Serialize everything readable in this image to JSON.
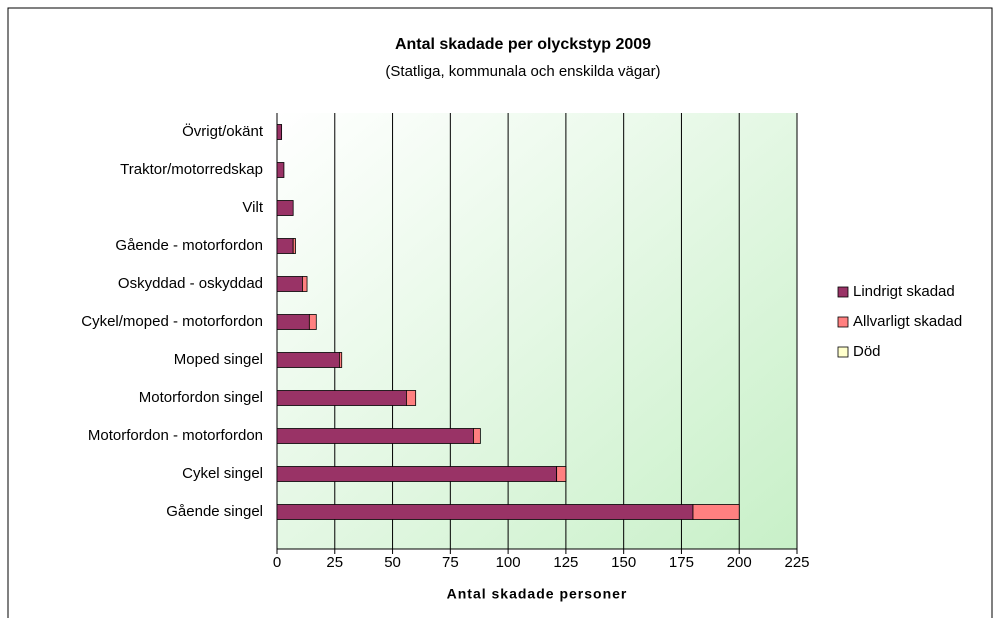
{
  "chart_data": {
    "type": "stacked-barh",
    "title": "Antal skadade per olyckstyp 2009",
    "subtitle": "(Statliga, kommunala och enskilda vägar)",
    "x_label": "Antal skadade personer",
    "categories": [
      "Övrigt/okänt",
      "Traktor/motorredskap",
      "Vilt",
      "Gående - motorfordon",
      "Oskyddad - oskyddad",
      "Cykel/moped - motorfordon",
      "Moped singel",
      "Motorfordon singel",
      "Motorfordon - motorfordon",
      "Cykel singel",
      "Gående singel"
    ],
    "series": [
      {
        "name": "Lindrigt skadad",
        "color": "#993366",
        "values": [
          2,
          3,
          7,
          7,
          11,
          14,
          27,
          56,
          85,
          121,
          180
        ]
      },
      {
        "name": "Allvarligt skadad",
        "color": "#ff8080",
        "values": [
          0,
          0,
          0,
          1,
          2,
          3,
          1,
          4,
          3,
          4,
          20
        ]
      },
      {
        "name": "Död",
        "color": "#ffffcc",
        "values": [
          0,
          0,
          0,
          0,
          0,
          0,
          0,
          0,
          0,
          0,
          0
        ]
      }
    ],
    "xlim": [
      0,
      225
    ],
    "xticks": [
      0,
      25,
      50,
      75,
      100,
      125,
      150,
      175,
      200,
      225
    ],
    "grid": true,
    "legend": "right"
  }
}
